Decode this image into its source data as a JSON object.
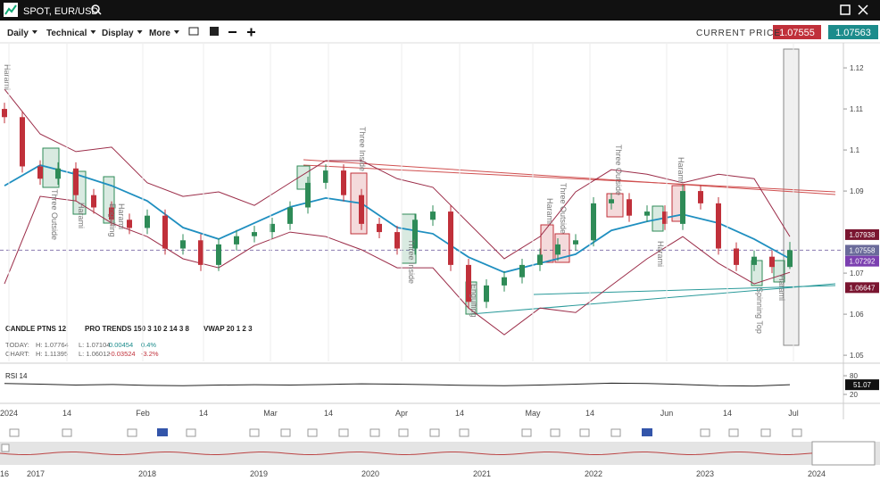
{
  "header": {
    "symbol": "SPOT, EUR/USD"
  },
  "toolbar": {
    "menus": [
      "Daily",
      "Technical",
      "Display",
      "More"
    ],
    "current_price_label": "CURRENT PRICE:",
    "bid": "1.07555",
    "ask": "1.07563"
  },
  "chart_data": {
    "type": "candlestick",
    "candles": [
      [
        1.11,
        1.1115,
        1.1065,
        1.108
      ],
      [
        1.108,
        1.1095,
        1.0945,
        1.096
      ],
      [
        1.096,
        1.0975,
        1.0915,
        1.093
      ],
      [
        1.093,
        1.097,
        1.0915,
        1.0955
      ],
      [
        1.0955,
        1.097,
        1.0875,
        1.089
      ],
      [
        1.089,
        1.0905,
        1.0845,
        1.086
      ],
      [
        1.086,
        1.0875,
        1.0815,
        1.083
      ],
      [
        1.083,
        1.0845,
        1.0795,
        1.081
      ],
      [
        1.081,
        1.0855,
        1.0795,
        1.084
      ],
      [
        1.084,
        1.0855,
        1.0745,
        1.076
      ],
      [
        1.076,
        1.0795,
        1.0745,
        1.078
      ],
      [
        1.078,
        1.0795,
        1.0705,
        1.072
      ],
      [
        1.072,
        1.0785,
        1.0705,
        1.077
      ],
      [
        1.077,
        1.0805,
        1.0755,
        1.079
      ],
      [
        1.079,
        1.0815,
        1.0775,
        1.08
      ],
      [
        1.08,
        1.0835,
        1.0785,
        1.082
      ],
      [
        1.082,
        1.0875,
        1.0805,
        1.086
      ],
      [
        1.086,
        1.0935,
        1.0845,
        1.092
      ],
      [
        1.092,
        1.0965,
        1.0905,
        1.095
      ],
      [
        1.095,
        1.0965,
        1.0875,
        1.089
      ],
      [
        1.089,
        1.0905,
        1.0805,
        1.082
      ],
      [
        1.082,
        1.0835,
        1.0785,
        1.08
      ],
      [
        1.08,
        1.0815,
        1.0745,
        1.076
      ],
      [
        1.076,
        1.0845,
        1.0745,
        1.083
      ],
      [
        1.083,
        1.0865,
        1.0815,
        1.085
      ],
      [
        1.085,
        1.0865,
        1.0705,
        1.072
      ],
      [
        1.072,
        1.0735,
        1.0615,
        1.063
      ],
      [
        1.063,
        1.0685,
        1.0615,
        1.067
      ],
      [
        1.067,
        1.0705,
        1.0655,
        1.069
      ],
      [
        1.069,
        1.0735,
        1.0675,
        1.072
      ],
      [
        1.072,
        1.076,
        1.0705,
        1.0745
      ],
      [
        1.0745,
        1.0785,
        1.073,
        1.077
      ],
      [
        1.077,
        1.0795,
        1.0755,
        1.078
      ],
      [
        1.078,
        1.0885,
        1.0765,
        1.087
      ],
      [
        1.087,
        1.0895,
        1.0855,
        1.088
      ],
      [
        1.088,
        1.0895,
        1.0825,
        1.084
      ],
      [
        1.084,
        1.0865,
        1.0825,
        1.085
      ],
      [
        1.085,
        1.0865,
        1.0805,
        1.082
      ],
      [
        1.082,
        1.0915,
        1.0805,
        1.09
      ],
      [
        1.09,
        1.0915,
        1.0855,
        1.087
      ],
      [
        1.087,
        1.0885,
        1.0745,
        1.076
      ],
      [
        1.076,
        1.0775,
        1.0705,
        1.072
      ],
      [
        1.072,
        1.0755,
        1.0705,
        1.074
      ],
      [
        1.074,
        1.0755,
        1.07,
        1.0715
      ],
      [
        1.0715,
        1.0776,
        1.071,
        1.0756
      ]
    ],
    "up_color": "#2e8b57",
    "down_color": "#c0303a",
    "ylim": [
      1.0485,
      1.1261
    ],
    "yticks": [
      1.12,
      1.11,
      1.1,
      1.09,
      1.07,
      1.06,
      1.05
    ],
    "bands": {
      "x": [
        0,
        2,
        4,
        6,
        8,
        10,
        12,
        14,
        16,
        18,
        20,
        22,
        24,
        26,
        28,
        30,
        32,
        34,
        36,
        38,
        40,
        42,
        44
      ],
      "upper": [
        1.1148,
        1.1039,
        1.0996,
        1.1007,
        1.092,
        1.0887,
        1.0898,
        1.0865,
        1.092,
        1.0974,
        1.0974,
        1.093,
        1.0909,
        1.0822,
        1.0735,
        1.0789,
        1.0898,
        1.0952,
        1.0941,
        1.092,
        1.0941,
        1.093,
        1.0789
      ],
      "middle": [
        1.0913,
        1.0963,
        1.0941,
        1.0913,
        1.0876,
        1.0811,
        1.0783,
        1.0822,
        1.0861,
        1.0883,
        1.087,
        1.0811,
        1.0796,
        1.0739,
        1.0702,
        1.0724,
        1.0746,
        1.0804,
        1.0826,
        1.0843,
        1.0822,
        1.0783,
        1.0735
      ],
      "lower": [
        1.0674,
        1.0887,
        1.0876,
        1.0822,
        1.0789,
        1.0735,
        1.0713,
        1.0767,
        1.08,
        1.0789,
        1.0757,
        1.0713,
        1.0713,
        1.0615,
        1.055,
        1.0615,
        1.0604,
        1.067,
        1.0735,
        1.0789,
        1.0724,
        1.0674,
        1.0702
      ],
      "band_color": "#9b2c48",
      "middle_color": "#1f8fc0"
    },
    "price_tags": [
      {
        "value": 1.07938,
        "color": "#7a1530"
      },
      {
        "value": 1.07558,
        "color": "#6a6a9a"
      },
      {
        "value": 1.07292,
        "color": "#7b3fb0"
      },
      {
        "value": 1.06647,
        "color": "#7a1530"
      }
    ],
    "current_line": 1.07558,
    "patterns": [
      "Harami",
      "Three Outside",
      "Harami",
      "Engulfing",
      "Harami",
      "Three Inside",
      "Three Inside",
      "Engulfing",
      "Harami",
      "Three Outside",
      "Three Outside",
      "Harami",
      "Harami",
      "Spinning Top",
      "Harami"
    ],
    "x_labels": [
      "2024",
      "14",
      "Feb",
      "14",
      "Mar",
      "14",
      "Apr",
      "14",
      "May",
      "14",
      "Jun",
      "14",
      "Jul"
    ],
    "indicators": [
      "CANDLE PTNS 12",
      "PRO TRENDS 150 3 10 2 14 3 8",
      "VWAP 20 1 2 3"
    ],
    "stats": [
      [
        "TODAY:",
        "H: 1.07764",
        "L: 1.07104",
        "0.00454",
        "0.4%"
      ],
      [
        "CHART:",
        "H: 1.11395",
        "L: 1.06012",
        "-0.03524",
        "-3.2%"
      ]
    ],
    "rsi": {
      "label": "RSI 14",
      "values": [
        55,
        53,
        50,
        52,
        49,
        48,
        50,
        51,
        50,
        52,
        54,
        53,
        51,
        49,
        48,
        50,
        53,
        56,
        55,
        52,
        48,
        47,
        51.07
      ],
      "ylim": [
        -3,
        106
      ],
      "yticks": [
        80,
        20
      ],
      "last": 51.07,
      "color": "#222"
    },
    "navigator_labels": [
      "16",
      "2017",
      "2018",
      "2019",
      "2020",
      "2021",
      "2022",
      "2023",
      "2024"
    ]
  }
}
